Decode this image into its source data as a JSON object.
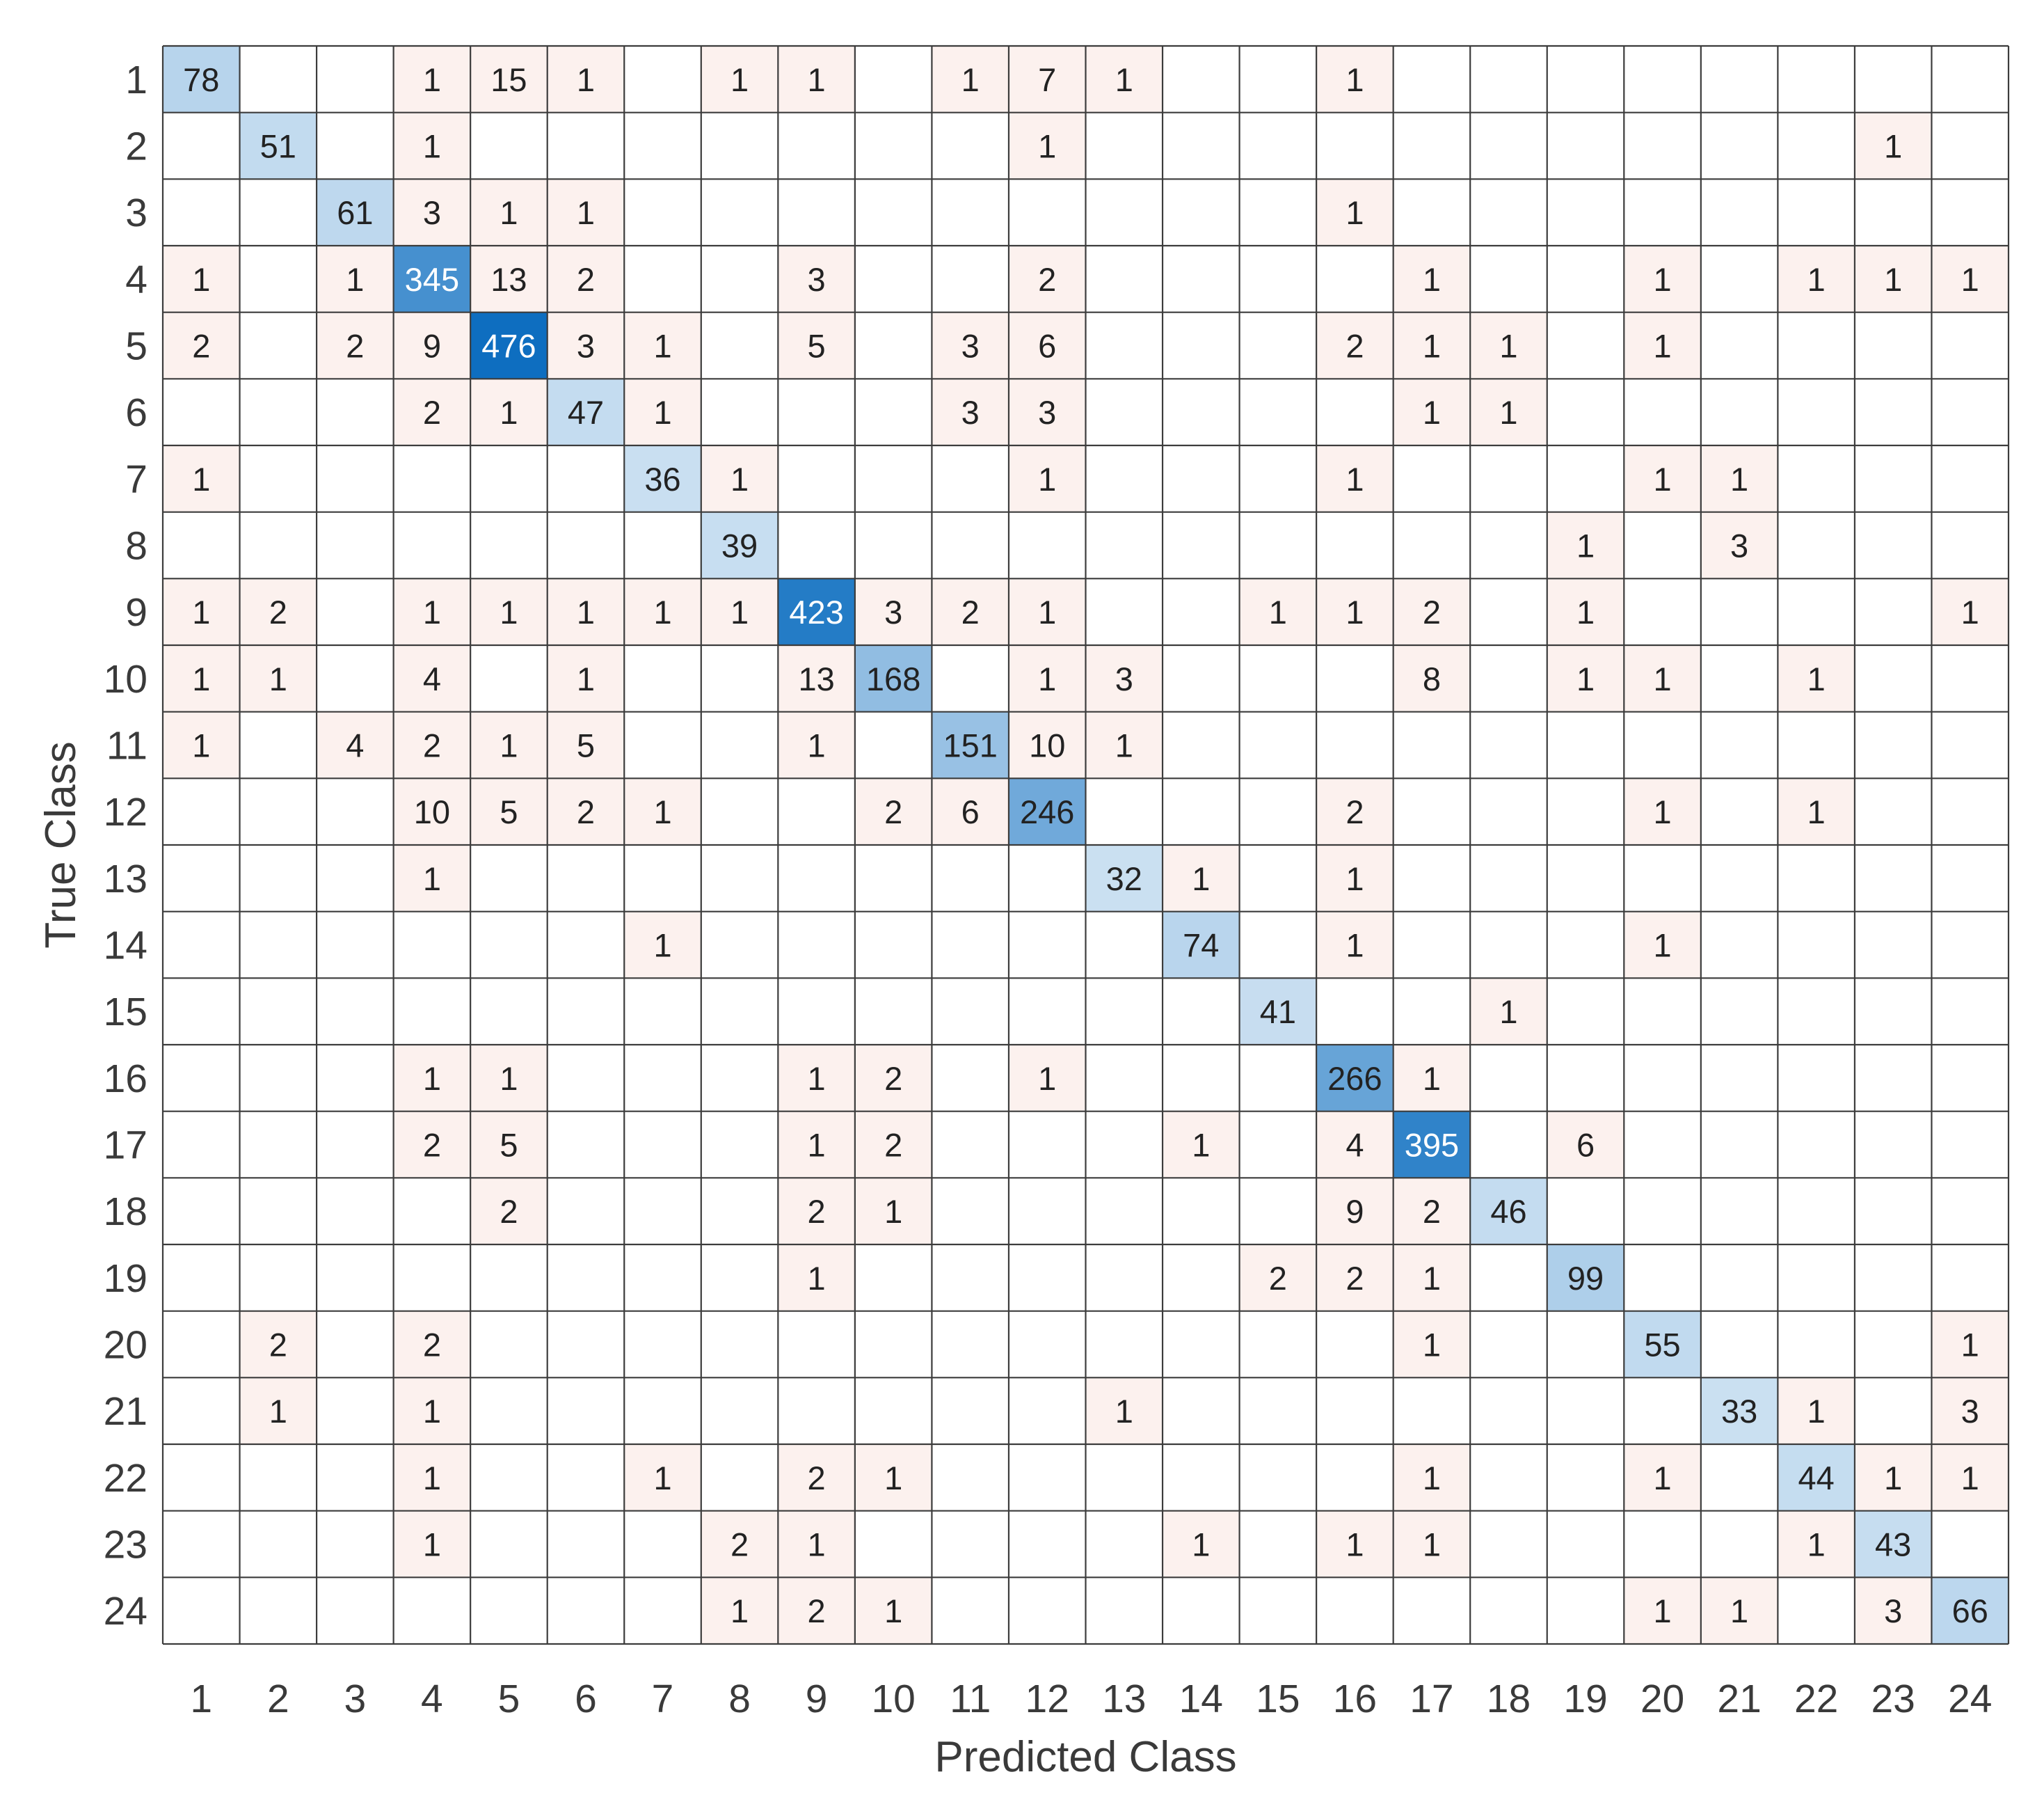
{
  "chart_data": {
    "type": "heatmap",
    "title": "",
    "xlabel": "Predicted Class",
    "ylabel": "True Class",
    "x_categories": [
      "1",
      "2",
      "3",
      "4",
      "5",
      "6",
      "7",
      "8",
      "9",
      "10",
      "11",
      "12",
      "13",
      "14",
      "15",
      "16",
      "17",
      "18",
      "19",
      "20",
      "21",
      "22",
      "23",
      "24"
    ],
    "y_categories": [
      "1",
      "2",
      "3",
      "4",
      "5",
      "6",
      "7",
      "8",
      "9",
      "10",
      "11",
      "12",
      "13",
      "14",
      "15",
      "16",
      "17",
      "18",
      "19",
      "20",
      "21",
      "22",
      "23",
      "24"
    ],
    "matrix": [
      [
        78,
        0,
        0,
        1,
        15,
        1,
        0,
        1,
        1,
        0,
        1,
        7,
        1,
        0,
        0,
        1,
        0,
        0,
        0,
        0,
        0,
        0,
        0,
        0
      ],
      [
        0,
        51,
        0,
        1,
        0,
        0,
        0,
        0,
        0,
        0,
        0,
        1,
        0,
        0,
        0,
        0,
        0,
        0,
        0,
        0,
        0,
        0,
        1,
        0
      ],
      [
        0,
        0,
        61,
        3,
        1,
        1,
        0,
        0,
        0,
        0,
        0,
        0,
        0,
        0,
        0,
        1,
        0,
        0,
        0,
        0,
        0,
        0,
        0,
        0
      ],
      [
        1,
        0,
        1,
        345,
        13,
        2,
        0,
        0,
        3,
        0,
        0,
        2,
        0,
        0,
        0,
        0,
        1,
        0,
        0,
        1,
        0,
        1,
        1,
        1
      ],
      [
        2,
        0,
        2,
        9,
        476,
        3,
        1,
        0,
        5,
        0,
        3,
        6,
        0,
        0,
        0,
        2,
        1,
        1,
        0,
        1,
        0,
        0,
        0,
        0
      ],
      [
        0,
        0,
        0,
        2,
        1,
        47,
        1,
        0,
        0,
        0,
        3,
        3,
        0,
        0,
        0,
        0,
        1,
        1,
        0,
        0,
        0,
        0,
        0,
        0
      ],
      [
        1,
        0,
        0,
        0,
        0,
        0,
        36,
        1,
        0,
        0,
        0,
        1,
        0,
        0,
        0,
        1,
        0,
        0,
        0,
        1,
        1,
        0,
        0,
        0
      ],
      [
        0,
        0,
        0,
        0,
        0,
        0,
        0,
        39,
        0,
        0,
        0,
        0,
        0,
        0,
        0,
        0,
        0,
        0,
        1,
        0,
        3,
        0,
        0,
        0
      ],
      [
        1,
        2,
        0,
        1,
        1,
        1,
        1,
        1,
        423,
        3,
        2,
        1,
        0,
        0,
        1,
        1,
        2,
        0,
        1,
        0,
        0,
        0,
        0,
        1
      ],
      [
        1,
        1,
        0,
        4,
        0,
        1,
        0,
        0,
        13,
        168,
        0,
        1,
        3,
        0,
        0,
        0,
        8,
        0,
        1,
        1,
        0,
        1,
        0,
        0
      ],
      [
        1,
        0,
        4,
        2,
        1,
        5,
        0,
        0,
        1,
        0,
        151,
        10,
        1,
        0,
        0,
        0,
        0,
        0,
        0,
        0,
        0,
        0,
        0,
        0
      ],
      [
        0,
        0,
        0,
        10,
        5,
        2,
        1,
        0,
        0,
        2,
        6,
        246,
        0,
        0,
        0,
        2,
        0,
        0,
        0,
        1,
        0,
        1,
        0,
        0
      ],
      [
        0,
        0,
        0,
        1,
        0,
        0,
        0,
        0,
        0,
        0,
        0,
        0,
        32,
        1,
        0,
        1,
        0,
        0,
        0,
        0,
        0,
        0,
        0,
        0
      ],
      [
        0,
        0,
        0,
        0,
        0,
        0,
        1,
        0,
        0,
        0,
        0,
        0,
        0,
        74,
        0,
        1,
        0,
        0,
        0,
        1,
        0,
        0,
        0,
        0
      ],
      [
        0,
        0,
        0,
        0,
        0,
        0,
        0,
        0,
        0,
        0,
        0,
        0,
        0,
        0,
        41,
        0,
        0,
        1,
        0,
        0,
        0,
        0,
        0,
        0
      ],
      [
        0,
        0,
        0,
        1,
        1,
        0,
        0,
        0,
        1,
        2,
        0,
        1,
        0,
        0,
        0,
        266,
        1,
        0,
        0,
        0,
        0,
        0,
        0,
        0
      ],
      [
        0,
        0,
        0,
        2,
        5,
        0,
        0,
        0,
        1,
        2,
        0,
        0,
        0,
        1,
        0,
        4,
        395,
        0,
        6,
        0,
        0,
        0,
        0,
        0
      ],
      [
        0,
        0,
        0,
        0,
        2,
        0,
        0,
        0,
        2,
        1,
        0,
        0,
        0,
        0,
        0,
        9,
        2,
        46,
        0,
        0,
        0,
        0,
        0,
        0
      ],
      [
        0,
        0,
        0,
        0,
        0,
        0,
        0,
        0,
        1,
        0,
        0,
        0,
        0,
        0,
        2,
        2,
        1,
        0,
        99,
        0,
        0,
        0,
        0,
        0
      ],
      [
        0,
        2,
        0,
        2,
        0,
        0,
        0,
        0,
        0,
        0,
        0,
        0,
        0,
        0,
        0,
        0,
        1,
        0,
        0,
        55,
        0,
        0,
        0,
        1
      ],
      [
        0,
        1,
        0,
        1,
        0,
        0,
        0,
        0,
        0,
        0,
        0,
        0,
        1,
        0,
        0,
        0,
        0,
        0,
        0,
        0,
        33,
        1,
        0,
        3
      ],
      [
        0,
        0,
        0,
        1,
        0,
        0,
        1,
        0,
        2,
        1,
        0,
        0,
        0,
        0,
        0,
        0,
        1,
        0,
        0,
        1,
        0,
        44,
        1,
        1
      ],
      [
        0,
        0,
        0,
        1,
        0,
        0,
        0,
        2,
        1,
        0,
        0,
        0,
        0,
        1,
        0,
        1,
        1,
        0,
        0,
        0,
        0,
        1,
        43,
        0
      ],
      [
        0,
        0,
        0,
        0,
        0,
        0,
        0,
        1,
        2,
        1,
        0,
        0,
        0,
        0,
        0,
        0,
        0,
        0,
        0,
        1,
        1,
        0,
        3,
        66
      ]
    ],
    "grid": true,
    "legend": "none",
    "colors": {
      "diagonal_low": "#d8e8f5",
      "diagonal_high": "#0e6ec0",
      "off_diagonal": "#fcf1ee",
      "grid_line": "#3c3c3c",
      "text_dark": "#222222",
      "text_light": "#ffffff",
      "axis_text": "#3a3a3a"
    }
  }
}
